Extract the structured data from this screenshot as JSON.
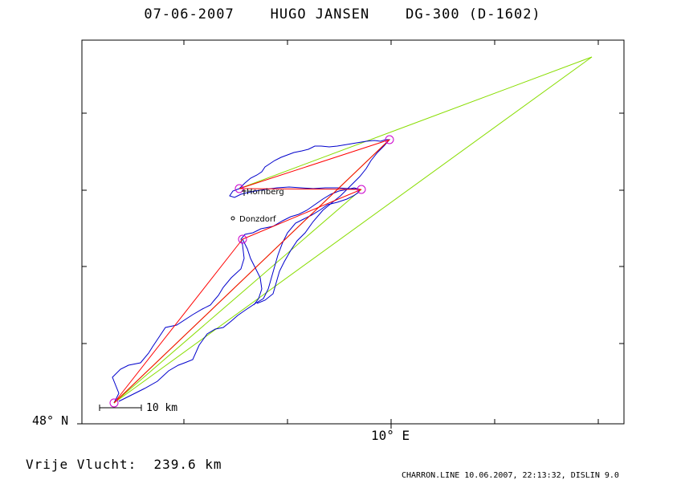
{
  "header": {
    "title": "07-06-2007    HUGO JANSEN    DG-300 (D-1602)"
  },
  "axes": {
    "y_label": "48° N",
    "x_label": "10° E"
  },
  "scale": {
    "label": "10 km"
  },
  "places": [
    {
      "name": "Hornberg",
      "marker": "glider-icon"
    },
    {
      "name": "Donzdorf",
      "marker": "circle-icon"
    }
  ],
  "summary": {
    "label": "Vrije Vlucht:",
    "value": "239.6 km"
  },
  "footer": {
    "text": "CHARRON.LINE 10.06.2007, 22:13:32, DISLIN 9.0"
  },
  "colors": {
    "track": "#0000cc",
    "task": "#ff0000",
    "triangle": "#88dd00",
    "turnpoint": "#cc00cc",
    "frame": "#000000"
  }
}
